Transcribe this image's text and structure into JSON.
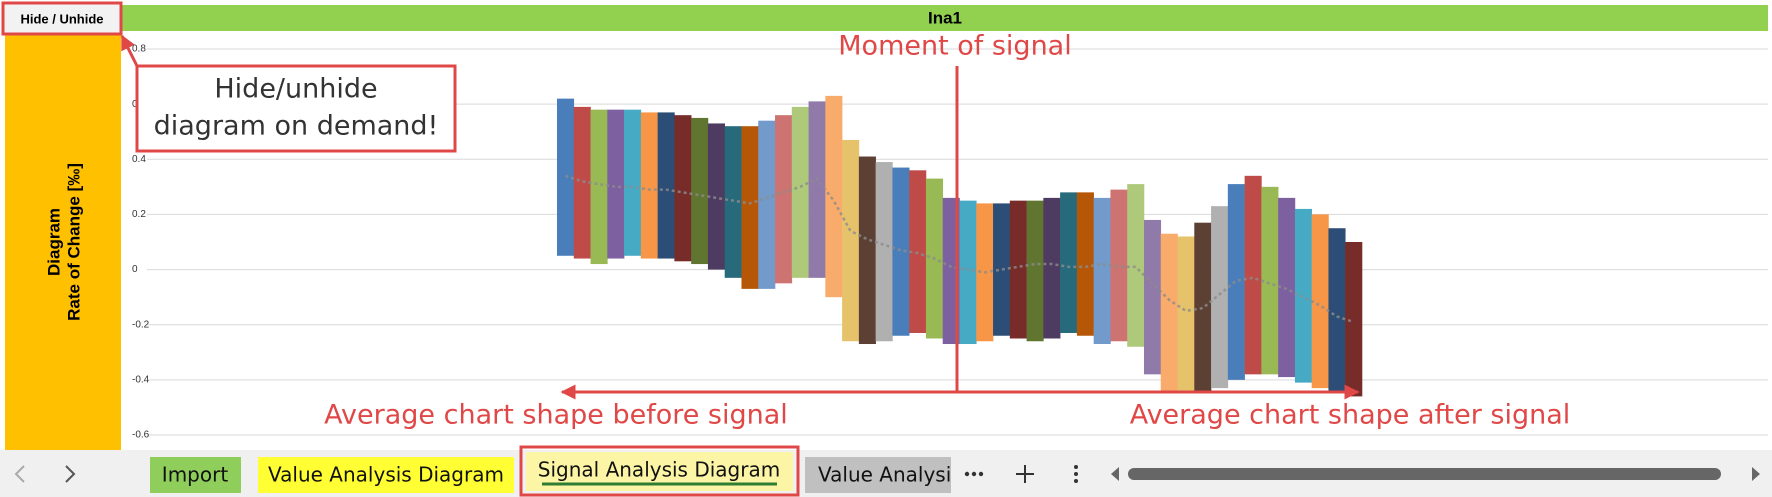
{
  "ui": {
    "button": "Hide / Unhide",
    "tabs": [
      "Import",
      "Value Analysis Diagram",
      "Signal Analysis Diagram",
      "Value Analysis"
    ]
  },
  "annotations": {
    "moment": "Moment of signal",
    "hide_note": [
      "Hide/unhide",
      "diagram on demand!"
    ],
    "before": "Average chart shape before signal",
    "after": "Average chart shape after signal"
  },
  "chart_data": {
    "type": "floating-bar",
    "title": "Ina1",
    "y_label": [
      "Diagram",
      "Rate of Change [‰]"
    ],
    "ylim": [
      -0.6,
      0.8
    ],
    "yticks": [
      -0.6,
      -0.4,
      -0.2,
      0,
      0.2,
      0.4,
      0.6,
      0.8
    ],
    "grid": true,
    "colors": [
      "#4a7ebb",
      "#be4b48",
      "#98b954",
      "#7d60a0",
      "#46aac5",
      "#f79646",
      "#2c4d75",
      "#772c2a",
      "#5f7530",
      "#4d3b62",
      "#276a7c",
      "#b65708",
      "#729aca",
      "#cd7371",
      "#afc97a",
      "#8f7aa9",
      "#f9ab6b",
      "#e6c36b",
      "#5c4033",
      "#b0b0b0"
    ],
    "average_color": "#8c8c8c",
    "high": [
      0.62,
      0.59,
      0.58,
      0.58,
      0.58,
      0.57,
      0.57,
      0.56,
      0.55,
      0.53,
      0.52,
      0.52,
      0.54,
      0.56,
      0.59,
      0.61,
      0.63,
      0.47,
      0.41,
      0.39,
      0.37,
      0.36,
      0.33,
      0.26,
      0.25,
      0.24,
      0.24,
      0.25,
      0.25,
      0.26,
      0.28,
      0.28,
      0.26,
      0.29,
      0.31,
      0.18,
      0.13,
      0.12,
      0.17,
      0.23,
      0.31,
      0.34,
      0.3,
      0.26,
      0.22,
      0.2,
      0.15,
      0.1
    ],
    "low": [
      0.05,
      0.04,
      0.02,
      0.04,
      0.05,
      0.04,
      0.04,
      0.03,
      0.02,
      0.0,
      -0.03,
      -0.07,
      -0.07,
      -0.05,
      -0.03,
      -0.03,
      -0.1,
      -0.26,
      -0.27,
      -0.26,
      -0.24,
      -0.23,
      -0.25,
      -0.27,
      -0.27,
      -0.26,
      -0.24,
      -0.25,
      -0.26,
      -0.25,
      -0.23,
      -0.24,
      -0.27,
      -0.26,
      -0.28,
      -0.38,
      -0.44,
      -0.44,
      -0.44,
      -0.43,
      -0.4,
      -0.38,
      -0.38,
      -0.39,
      -0.41,
      -0.43,
      -0.44,
      -0.46
    ],
    "average": [
      0.34,
      0.32,
      0.31,
      0.3,
      0.3,
      0.29,
      0.29,
      0.28,
      0.27,
      0.26,
      0.25,
      0.24,
      0.26,
      0.28,
      0.3,
      0.33,
      0.25,
      0.14,
      0.11,
      0.09,
      0.07,
      0.06,
      0.04,
      0.01,
      0.0,
      -0.01,
      0.0,
      0.01,
      0.02,
      0.02,
      0.01,
      0.01,
      0.02,
      0.01,
      0.01,
      -0.05,
      -0.11,
      -0.15,
      -0.14,
      -0.09,
      -0.04,
      -0.03,
      -0.05,
      -0.07,
      -0.1,
      -0.13,
      -0.17,
      -0.19
    ]
  }
}
